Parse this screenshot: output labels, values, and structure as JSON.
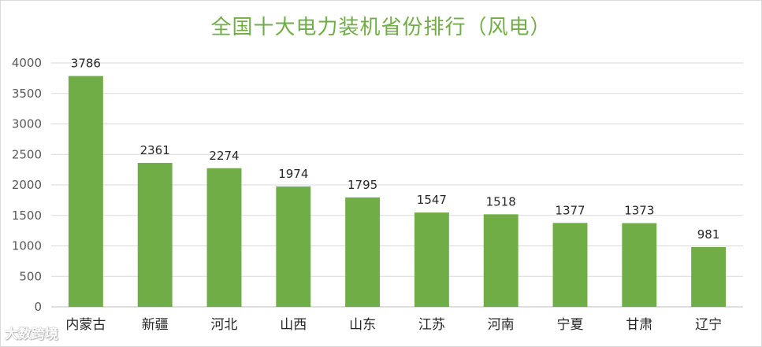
{
  "chart_data": {
    "type": "bar",
    "title": "全国十大电力装机省份排行（风电）",
    "xlabel": "",
    "ylabel": "",
    "categories": [
      "内蒙古",
      "新疆",
      "河北",
      "山西",
      "山东",
      "江苏",
      "河南",
      "宁夏",
      "甘肃",
      "辽宁"
    ],
    "values": [
      3786,
      2361,
      2274,
      1974,
      1795,
      1547,
      1518,
      1377,
      1373,
      981
    ],
    "ylim": [
      0,
      4000
    ],
    "yticks": [
      0,
      500,
      1000,
      1500,
      2000,
      2500,
      3000,
      3500,
      4000
    ],
    "grid": true,
    "legend": "none",
    "bar_color": "#70ad47",
    "title_color": "#70ad47",
    "data_labels": true
  },
  "watermark": {
    "text": "大数跨境"
  }
}
